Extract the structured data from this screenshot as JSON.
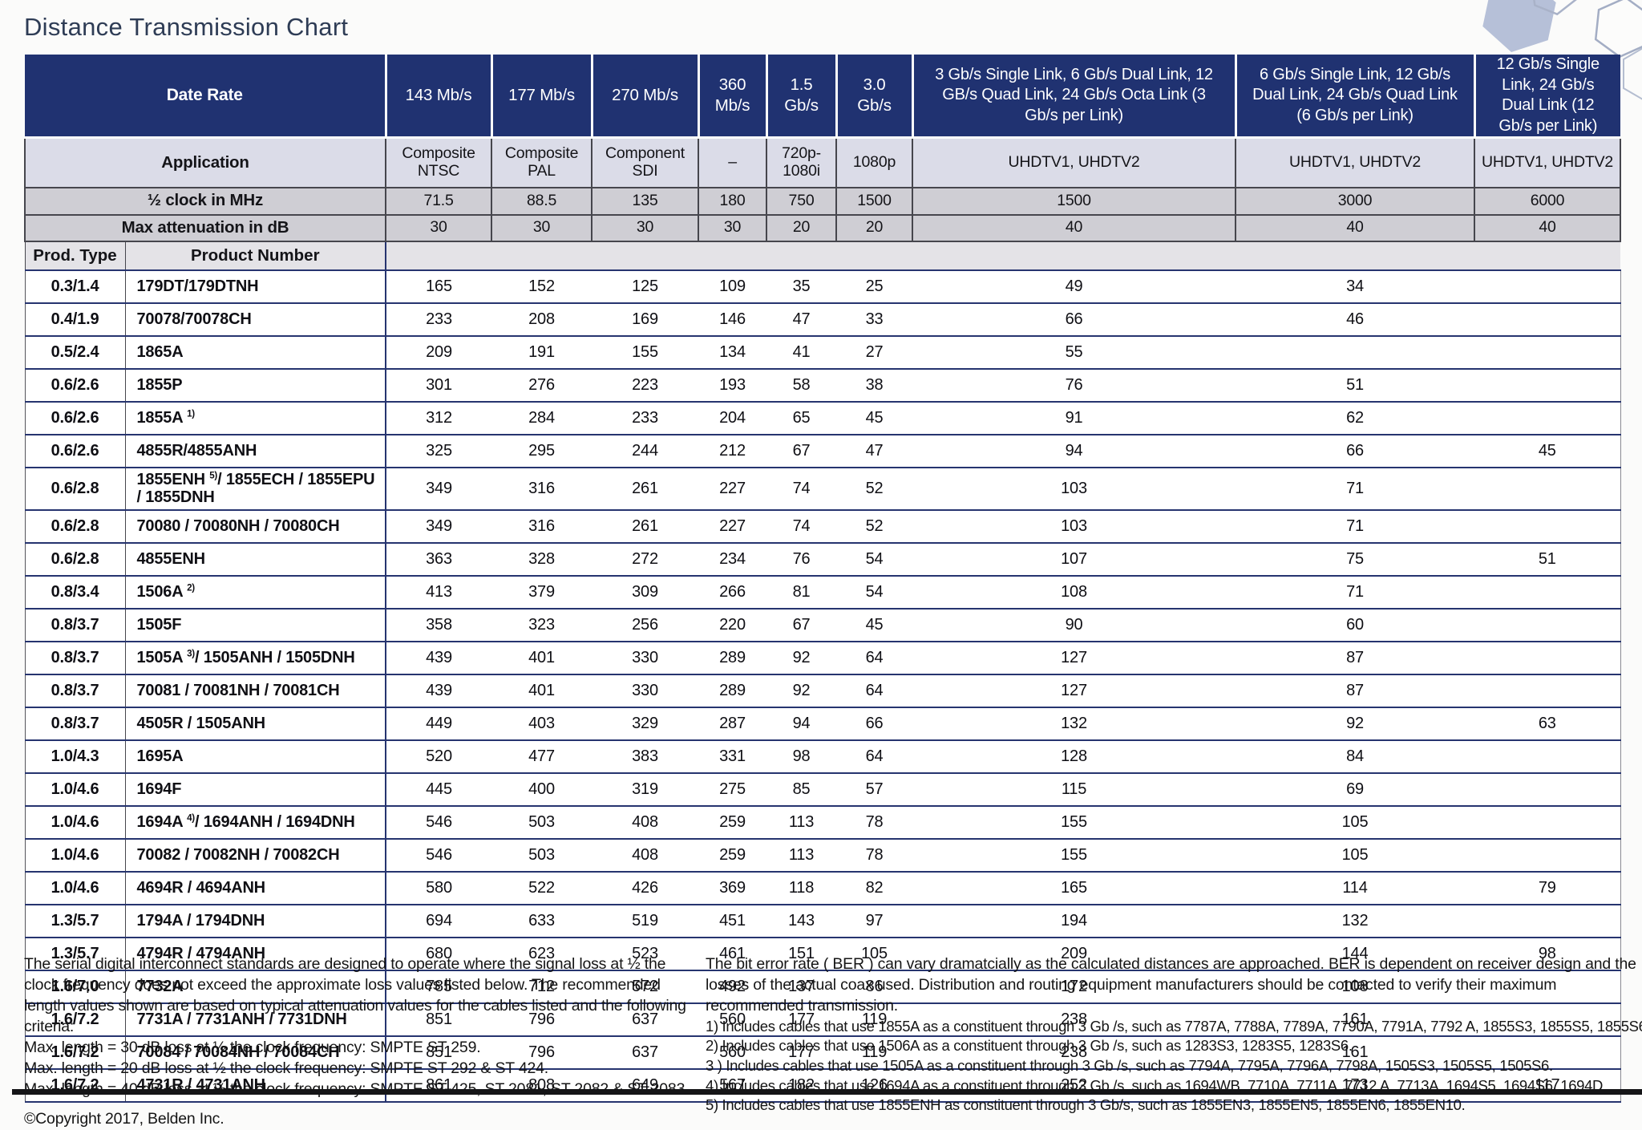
{
  "page": {
    "title": "Distance Transmission Chart"
  },
  "colors": {
    "header_navy": "#203271",
    "row_lavender": "#dbdce8",
    "row_grey": "#cfced4",
    "line_navy": "#26346f",
    "title_color": "#2e3c55",
    "hexagon_fill": "#b6c0d8"
  },
  "table": {
    "header": {
      "date_rate_label": "Date Rate",
      "application_label": "Application",
      "half_clock_label": "½ clock in MHz",
      "max_atten_label": "Max attenuation in dB",
      "prod_type_label": "Prod. Type",
      "product_number_label": "Product Number",
      "rate_columns": [
        "143 Mb/s",
        "177 Mb/s",
        "270 Mb/s",
        "360 Mb/s",
        "1.5 Gb/s",
        "3.0 Gb/s",
        "3 Gb/s Single Link, 6 Gb/s Dual Link, 12 GB/s Quad Link, 24 Gb/s Octa Link (3 Gb/s per Link)",
        "6 Gb/s Single Link, 12 Gb/s Dual Link, 24 Gb/s Quad Link (6 Gb/s per Link)",
        "12 Gb/s Single Link, 24 Gb/s Dual Link (12 Gb/s per Link)"
      ],
      "applications": [
        "Composite NTSC",
        "Composite PAL",
        "Component SDI",
        "–",
        "720p-1080i",
        "1080p",
        "UHDTV1, UHDTV2",
        "UHDTV1, UHDTV2",
        "UHDTV1, UHDTV2"
      ],
      "half_clock_mhz": [
        "71.5",
        "88.5",
        "135",
        "180",
        "750",
        "1500",
        "1500",
        "3000",
        "6000"
      ],
      "max_attenuation_db": [
        "30",
        "30",
        "30",
        "30",
        "20",
        "20",
        "40",
        "40",
        "40"
      ]
    },
    "rows": [
      {
        "prod_type": "0.3/1.4",
        "product": [
          {
            "t": "179DT/179DTNH"
          }
        ],
        "values": [
          "165",
          "152",
          "125",
          "109",
          "35",
          "25",
          "49",
          "34",
          ""
        ]
      },
      {
        "prod_type": "0.4/1.9",
        "product": [
          {
            "t": "70078/70078CH"
          }
        ],
        "values": [
          "233",
          "208",
          "169",
          "146",
          "47",
          "33",
          "66",
          "46",
          ""
        ]
      },
      {
        "prod_type": "0.5/2.4",
        "product": [
          {
            "t": "1865A"
          }
        ],
        "values": [
          "209",
          "191",
          "155",
          "134",
          "41",
          "27",
          "55",
          "",
          ""
        ]
      },
      {
        "prod_type": "0.6/2.6",
        "product": [
          {
            "t": "1855P"
          }
        ],
        "values": [
          "301",
          "276",
          "223",
          "193",
          "58",
          "38",
          "76",
          "51",
          ""
        ]
      },
      {
        "prod_type": "0.6/2.6",
        "product": [
          {
            "t": "1855A "
          },
          {
            "sup": "1)"
          }
        ],
        "values": [
          "312",
          "284",
          "233",
          "204",
          "65",
          "45",
          "91",
          "62",
          ""
        ]
      },
      {
        "prod_type": "0.6/2.6",
        "product": [
          {
            "t": "4855R/4855ANH"
          }
        ],
        "values": [
          "325",
          "295",
          "244",
          "212",
          "67",
          "47",
          "94",
          "66",
          "45"
        ]
      },
      {
        "prod_type": "0.6/2.8",
        "product": [
          {
            "t": "1855ENH "
          },
          {
            "sup": "5)"
          },
          {
            "t": "/ 1855ECH / 1855EPU / 1855DNH"
          }
        ],
        "values": [
          "349",
          "316",
          "261",
          "227",
          "74",
          "52",
          "103",
          "71",
          ""
        ]
      },
      {
        "prod_type": "0.6/2.8",
        "product": [
          {
            "t": "70080 / 70080NH / 70080CH"
          }
        ],
        "values": [
          "349",
          "316",
          "261",
          "227",
          "74",
          "52",
          "103",
          "71",
          ""
        ]
      },
      {
        "prod_type": "0.6/2.8",
        "product": [
          {
            "t": "4855ENH"
          }
        ],
        "values": [
          "363",
          "328",
          "272",
          "234",
          "76",
          "54",
          "107",
          "75",
          "51"
        ]
      },
      {
        "prod_type": "0.8/3.4",
        "product": [
          {
            "t": "1506A "
          },
          {
            "sup": "2)"
          }
        ],
        "values": [
          "413",
          "379",
          "309",
          "266",
          "81",
          "54",
          "108",
          "71",
          ""
        ]
      },
      {
        "prod_type": "0.8/3.7",
        "product": [
          {
            "t": "1505F"
          }
        ],
        "values": [
          "358",
          "323",
          "256",
          "220",
          "67",
          "45",
          "90",
          "60",
          ""
        ]
      },
      {
        "prod_type": "0.8/3.7",
        "product": [
          {
            "t": "1505A "
          },
          {
            "sup": "3)"
          },
          {
            "t": "/ 1505ANH / 1505DNH"
          }
        ],
        "values": [
          "439",
          "401",
          "330",
          "289",
          "92",
          "64",
          "127",
          "87",
          ""
        ]
      },
      {
        "prod_type": "0.8/3.7",
        "product": [
          {
            "t": "70081 / 70081NH / 70081CH"
          }
        ],
        "values": [
          "439",
          "401",
          "330",
          "289",
          "92",
          "64",
          "127",
          "87",
          ""
        ]
      },
      {
        "prod_type": "0.8/3.7",
        "product": [
          {
            "t": "4505R / 1505ANH"
          }
        ],
        "values": [
          "449",
          "403",
          "329",
          "287",
          "94",
          "66",
          "132",
          "92",
          "63"
        ]
      },
      {
        "prod_type": "1.0/4.3",
        "product": [
          {
            "t": "1695A"
          }
        ],
        "values": [
          "520",
          "477",
          "383",
          "331",
          "98",
          "64",
          "128",
          "84",
          ""
        ]
      },
      {
        "prod_type": "1.0/4.6",
        "product": [
          {
            "t": "1694F"
          }
        ],
        "values": [
          "445",
          "400",
          "319",
          "275",
          "85",
          "57",
          "115",
          "69",
          ""
        ]
      },
      {
        "prod_type": "1.0/4.6",
        "product": [
          {
            "t": "1694A "
          },
          {
            "sup": "4)"
          },
          {
            "t": "/ 1694ANH / 1694DNH"
          }
        ],
        "values": [
          "546",
          "503",
          "408",
          "259",
          "113",
          "78",
          "155",
          "105",
          ""
        ]
      },
      {
        "prod_type": "1.0/4.6",
        "product": [
          {
            "t": "70082 / 70082NH / 70082CH"
          }
        ],
        "values": [
          "546",
          "503",
          "408",
          "259",
          "113",
          "78",
          "155",
          "105",
          ""
        ]
      },
      {
        "prod_type": "1.0/4.6",
        "product": [
          {
            "t": "4694R / 4694ANH"
          }
        ],
        "values": [
          "580",
          "522",
          "426",
          "369",
          "118",
          "82",
          "165",
          "114",
          "79"
        ]
      },
      {
        "prod_type": "1.3/5.7",
        "product": [
          {
            "t": "1794A / 1794DNH"
          }
        ],
        "values": [
          "694",
          "633",
          "519",
          "451",
          "143",
          "97",
          "194",
          "132",
          ""
        ]
      },
      {
        "prod_type": "1.3/5.7",
        "product": [
          {
            "t": "4794R / 4794ANH"
          }
        ],
        "values": [
          "680",
          "623",
          "523",
          "461",
          "151",
          "105",
          "209",
          "144",
          "98"
        ]
      },
      {
        "prod_type": "1.6/7.0",
        "product": [
          {
            "t": "7732A"
          }
        ],
        "values": [
          "785",
          "712",
          "572",
          "492",
          "137",
          "86",
          "172",
          "108",
          ""
        ]
      },
      {
        "prod_type": "1.6/7.2",
        "product": [
          {
            "t": "7731A / 7731ANH / 7731DNH"
          }
        ],
        "values": [
          "851",
          "796",
          "637",
          "560",
          "177",
          "119",
          "238",
          "161",
          ""
        ]
      },
      {
        "prod_type": "1.6/7.2",
        "product": [
          {
            "t": "70084 / 70084NH / 70084CH"
          }
        ],
        "values": [
          "851",
          "796",
          "637",
          "560",
          "177",
          "119",
          "238",
          "161",
          ""
        ]
      },
      {
        "prod_type": "1.6/7.2",
        "product": [
          {
            "t": "4731R / 4731ANH"
          }
        ],
        "values": [
          "861",
          "808",
          "649",
          "567",
          "182",
          "126",
          "252",
          "173",
          "117"
        ]
      }
    ]
  },
  "footnotes": {
    "left_intro": "The serial digital interconnect standards are designed to operate where the signal loss at ½ the clock frequency does not exceed the approximate loss values listed below. The recommended length values shown are based on typical attenuation values for the cables listed and the following criteria:",
    "criteria": [
      "Max. length = 30 dB loss at ½ the clock frequency: SMPTE ST 259.",
      "Max. length = 20 dB loss at ½ the clock frequency: SMPTE ST 292 & ST 424.",
      "Max. length = 40 dB loss at ½ the clock frequency: SMPTE ST 425, ST 2081, ST 2082 & ST 2083."
    ],
    "copyright": "©Copyright 2017, Belden Inc.",
    "right_intro": "The bit error rate ( BER ) can vary dramatcially as the calculated distances are approached. BER is dependent on receiver design and the losses of the actual coax used. Distribution and routing equipment manufacturers should be contacted to verify their maximum recommended transmission.",
    "notes": [
      "1) Includes cables that use 1855A as a constituent through 3 Gb /s, such as 7787A, 7788A, 7789A, 7790A, 7791A, 7792 A, 1855S3, 1855S5, 1855S6.",
      "2) Includes cables that use 1506A as a constituent through 3 Gb /s, such as 1283S3, 1283S5, 1283S6.",
      "3 ) Includes cables that use 1505A as a constituent through 3 Gb /s, such as 7794A, 7795A, 7796A, 7798A, 1505S3, 1505S5, 1505S6.",
      "4) Includes cables that use 1694A as a constituent through 3 Gb /s, such as 1694WB, 7710A, 7711A, 7712 A, 7713A, 1694S5, 1694S6, 1694D.",
      "5) Includes cables that use 1855ENH as constituent through 3 Gb/s, such as 1855EN3, 1855EN5, 1855EN6, 1855EN10."
    ]
  }
}
